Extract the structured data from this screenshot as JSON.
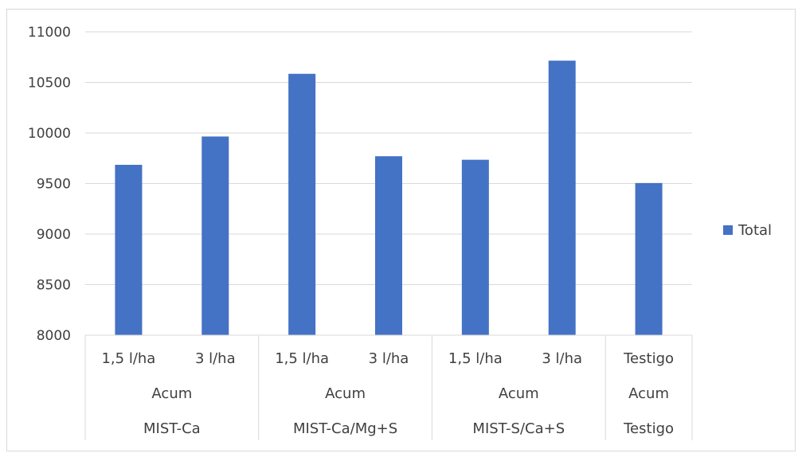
{
  "chart_data": {
    "type": "bar",
    "title": "",
    "xlabel": "",
    "ylabel": "",
    "ylim": [
      8000,
      11000
    ],
    "yticks": [
      8000,
      8500,
      9000,
      9500,
      10000,
      10500,
      11000
    ],
    "grid": true,
    "legend_position": "right",
    "color": "#4472c4",
    "categories": [
      {
        "level1": "1,5 l/ha",
        "level2": "Acum",
        "level3": "MIST-Ca"
      },
      {
        "level1": "3 l/ha",
        "level2": "Acum",
        "level3": "MIST-Ca"
      },
      {
        "level1": "1,5 l/ha",
        "level2": "Acum",
        "level3": "MIST-Ca/Mg+S"
      },
      {
        "level1": "3 l/ha",
        "level2": "Acum",
        "level3": "MIST-Ca/Mg+S"
      },
      {
        "level1": "1,5 l/ha",
        "level2": "Acum",
        "level3": "MIST-S/Ca+S"
      },
      {
        "level1": "3 l/ha",
        "level2": "Acum",
        "level3": "MIST-S/Ca+S"
      },
      {
        "level1": "Testigo",
        "level2": "Acum",
        "level3": "Testigo"
      }
    ],
    "groups": [
      {
        "level2": "Acum",
        "level3": "MIST-Ca",
        "start": 0,
        "count": 2
      },
      {
        "level2": "Acum",
        "level3": "MIST-Ca/Mg+S",
        "start": 2,
        "count": 2
      },
      {
        "level2": "Acum",
        "level3": "MIST-S/Ca+S",
        "start": 4,
        "count": 2
      },
      {
        "level2": "Acum",
        "level3": "Testigo",
        "start": 6,
        "count": 1
      }
    ],
    "series": [
      {
        "name": "Total",
        "values": [
          9685,
          9965,
          10585,
          9770,
          9735,
          10715,
          9505
        ]
      }
    ]
  }
}
